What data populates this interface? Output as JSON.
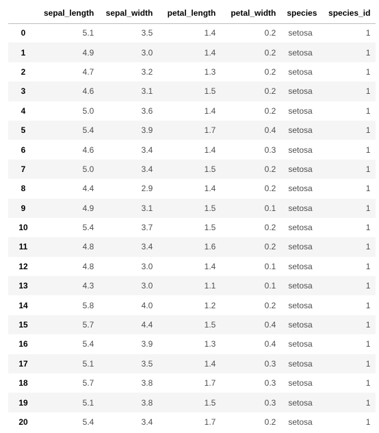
{
  "table": {
    "columns": [
      "sepal_length",
      "sepal_width",
      "petal_length",
      "petal_width",
      "species",
      "species_id"
    ],
    "rows": [
      {
        "index": "0",
        "sepal_length": "5.1",
        "sepal_width": "3.5",
        "petal_length": "1.4",
        "petal_width": "0.2",
        "species": "setosa",
        "species_id": "1"
      },
      {
        "index": "1",
        "sepal_length": "4.9",
        "sepal_width": "3.0",
        "petal_length": "1.4",
        "petal_width": "0.2",
        "species": "setosa",
        "species_id": "1"
      },
      {
        "index": "2",
        "sepal_length": "4.7",
        "sepal_width": "3.2",
        "petal_length": "1.3",
        "petal_width": "0.2",
        "species": "setosa",
        "species_id": "1"
      },
      {
        "index": "3",
        "sepal_length": "4.6",
        "sepal_width": "3.1",
        "petal_length": "1.5",
        "petal_width": "0.2",
        "species": "setosa",
        "species_id": "1"
      },
      {
        "index": "4",
        "sepal_length": "5.0",
        "sepal_width": "3.6",
        "petal_length": "1.4",
        "petal_width": "0.2",
        "species": "setosa",
        "species_id": "1"
      },
      {
        "index": "5",
        "sepal_length": "5.4",
        "sepal_width": "3.9",
        "petal_length": "1.7",
        "petal_width": "0.4",
        "species": "setosa",
        "species_id": "1"
      },
      {
        "index": "6",
        "sepal_length": "4.6",
        "sepal_width": "3.4",
        "petal_length": "1.4",
        "petal_width": "0.3",
        "species": "setosa",
        "species_id": "1"
      },
      {
        "index": "7",
        "sepal_length": "5.0",
        "sepal_width": "3.4",
        "petal_length": "1.5",
        "petal_width": "0.2",
        "species": "setosa",
        "species_id": "1"
      },
      {
        "index": "8",
        "sepal_length": "4.4",
        "sepal_width": "2.9",
        "petal_length": "1.4",
        "petal_width": "0.2",
        "species": "setosa",
        "species_id": "1"
      },
      {
        "index": "9",
        "sepal_length": "4.9",
        "sepal_width": "3.1",
        "petal_length": "1.5",
        "petal_width": "0.1",
        "species": "setosa",
        "species_id": "1"
      },
      {
        "index": "10",
        "sepal_length": "5.4",
        "sepal_width": "3.7",
        "petal_length": "1.5",
        "petal_width": "0.2",
        "species": "setosa",
        "species_id": "1"
      },
      {
        "index": "11",
        "sepal_length": "4.8",
        "sepal_width": "3.4",
        "petal_length": "1.6",
        "petal_width": "0.2",
        "species": "setosa",
        "species_id": "1"
      },
      {
        "index": "12",
        "sepal_length": "4.8",
        "sepal_width": "3.0",
        "petal_length": "1.4",
        "petal_width": "0.1",
        "species": "setosa",
        "species_id": "1"
      },
      {
        "index": "13",
        "sepal_length": "4.3",
        "sepal_width": "3.0",
        "petal_length": "1.1",
        "petal_width": "0.1",
        "species": "setosa",
        "species_id": "1"
      },
      {
        "index": "14",
        "sepal_length": "5.8",
        "sepal_width": "4.0",
        "petal_length": "1.2",
        "petal_width": "0.2",
        "species": "setosa",
        "species_id": "1"
      },
      {
        "index": "15",
        "sepal_length": "5.7",
        "sepal_width": "4.4",
        "petal_length": "1.5",
        "petal_width": "0.4",
        "species": "setosa",
        "species_id": "1"
      },
      {
        "index": "16",
        "sepal_length": "5.4",
        "sepal_width": "3.9",
        "petal_length": "1.3",
        "petal_width": "0.4",
        "species": "setosa",
        "species_id": "1"
      },
      {
        "index": "17",
        "sepal_length": "5.1",
        "sepal_width": "3.5",
        "petal_length": "1.4",
        "petal_width": "0.3",
        "species": "setosa",
        "species_id": "1"
      },
      {
        "index": "18",
        "sepal_length": "5.7",
        "sepal_width": "3.8",
        "petal_length": "1.7",
        "petal_width": "0.3",
        "species": "setosa",
        "species_id": "1"
      },
      {
        "index": "19",
        "sepal_length": "5.1",
        "sepal_width": "3.8",
        "petal_length": "1.5",
        "petal_width": "0.3",
        "species": "setosa",
        "species_id": "1"
      },
      {
        "index": "20",
        "sepal_length": "5.4",
        "sepal_width": "3.4",
        "petal_length": "1.7",
        "petal_width": "0.2",
        "species": "setosa",
        "species_id": "1"
      }
    ]
  }
}
